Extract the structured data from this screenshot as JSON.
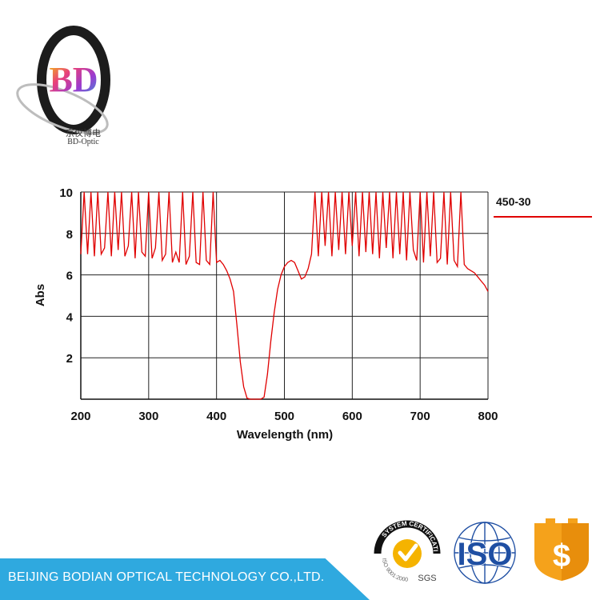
{
  "brand": {
    "logo_letters": "BD",
    "name_cn": "京仪博电",
    "name_en": "BD-Optic"
  },
  "footer": {
    "company": "BEIJING BODIAN OPTICAL TECHNOLOGY CO.,LTD."
  },
  "badges": {
    "sgs_arc_top": "SYSTEM CERTIFICATION",
    "sgs_arc_bottom": "ISO 9001:2000",
    "sgs_label": "SGS",
    "iso_label": "ISO",
    "dollar_symbol": "$"
  },
  "colors": {
    "series": "#e00000",
    "footer_bar": "#2fa9df",
    "iso_blue": "#1f4fa3",
    "shield_orange": "#f5a21b"
  },
  "chart_data": {
    "type": "line",
    "title": "",
    "xlabel": "Wavelength (nm)",
    "ylabel": "Abs",
    "xlim": [
      200,
      800
    ],
    "ylim": [
      0,
      10
    ],
    "xticks": [
      200,
      300,
      400,
      500,
      600,
      700,
      800
    ],
    "yticks": [
      2,
      4,
      6,
      8,
      10
    ],
    "grid": true,
    "legend_position": "right",
    "series": [
      {
        "name": "450-30",
        "x": [
          200,
          205,
          210,
          215,
          220,
          225,
          230,
          235,
          240,
          245,
          250,
          255,
          260,
          265,
          270,
          275,
          280,
          285,
          290,
          295,
          300,
          305,
          310,
          315,
          320,
          325,
          330,
          335,
          340,
          345,
          350,
          355,
          360,
          365,
          370,
          375,
          380,
          385,
          390,
          395,
          400,
          405,
          410,
          415,
          420,
          425,
          430,
          435,
          440,
          445,
          450,
          455,
          460,
          465,
          470,
          475,
          480,
          485,
          490,
          495,
          500,
          505,
          510,
          515,
          520,
          525,
          530,
          535,
          540,
          545,
          550,
          555,
          560,
          565,
          570,
          575,
          580,
          585,
          590,
          595,
          600,
          605,
          610,
          615,
          620,
          625,
          630,
          635,
          640,
          645,
          650,
          655,
          660,
          665,
          670,
          675,
          680,
          685,
          690,
          695,
          700,
          705,
          710,
          715,
          720,
          725,
          730,
          735,
          740,
          745,
          750,
          755,
          760,
          765,
          770,
          775,
          780,
          785,
          790,
          795,
          800
        ],
        "y": [
          7.0,
          10.0,
          7.0,
          10.0,
          6.9,
          10.0,
          7.0,
          7.3,
          10.0,
          6.9,
          10.0,
          7.2,
          10.0,
          6.9,
          7.4,
          10.0,
          6.8,
          10.0,
          7.1,
          6.9,
          10.0,
          6.8,
          7.3,
          10.0,
          6.7,
          7.0,
          10.0,
          6.6,
          7.1,
          6.6,
          10.0,
          6.5,
          6.9,
          10.0,
          6.6,
          6.5,
          10.0,
          6.7,
          6.5,
          10.0,
          6.6,
          6.7,
          6.5,
          6.2,
          5.8,
          5.2,
          3.6,
          1.8,
          0.6,
          0.05,
          0.0,
          0.0,
          0.0,
          0.0,
          0.1,
          1.2,
          2.8,
          4.2,
          5.3,
          6.0,
          6.4,
          6.6,
          6.7,
          6.6,
          6.2,
          5.8,
          5.9,
          6.3,
          7.0,
          10.0,
          6.9,
          10.0,
          7.4,
          10.0,
          6.9,
          10.0,
          7.2,
          10.0,
          7.0,
          10.0,
          7.4,
          10.0,
          6.9,
          10.0,
          7.1,
          10.0,
          7.0,
          10.0,
          6.8,
          10.0,
          7.3,
          10.0,
          6.8,
          10.0,
          7.0,
          10.0,
          6.7,
          10.0,
          7.2,
          6.7,
          10.0,
          6.6,
          10.0,
          6.9,
          10.0,
          6.6,
          6.8,
          10.0,
          6.5,
          10.0,
          6.7,
          6.4,
          10.0,
          6.5,
          6.3,
          6.2,
          6.1,
          5.9,
          5.7,
          5.5,
          5.2
        ]
      }
    ]
  }
}
